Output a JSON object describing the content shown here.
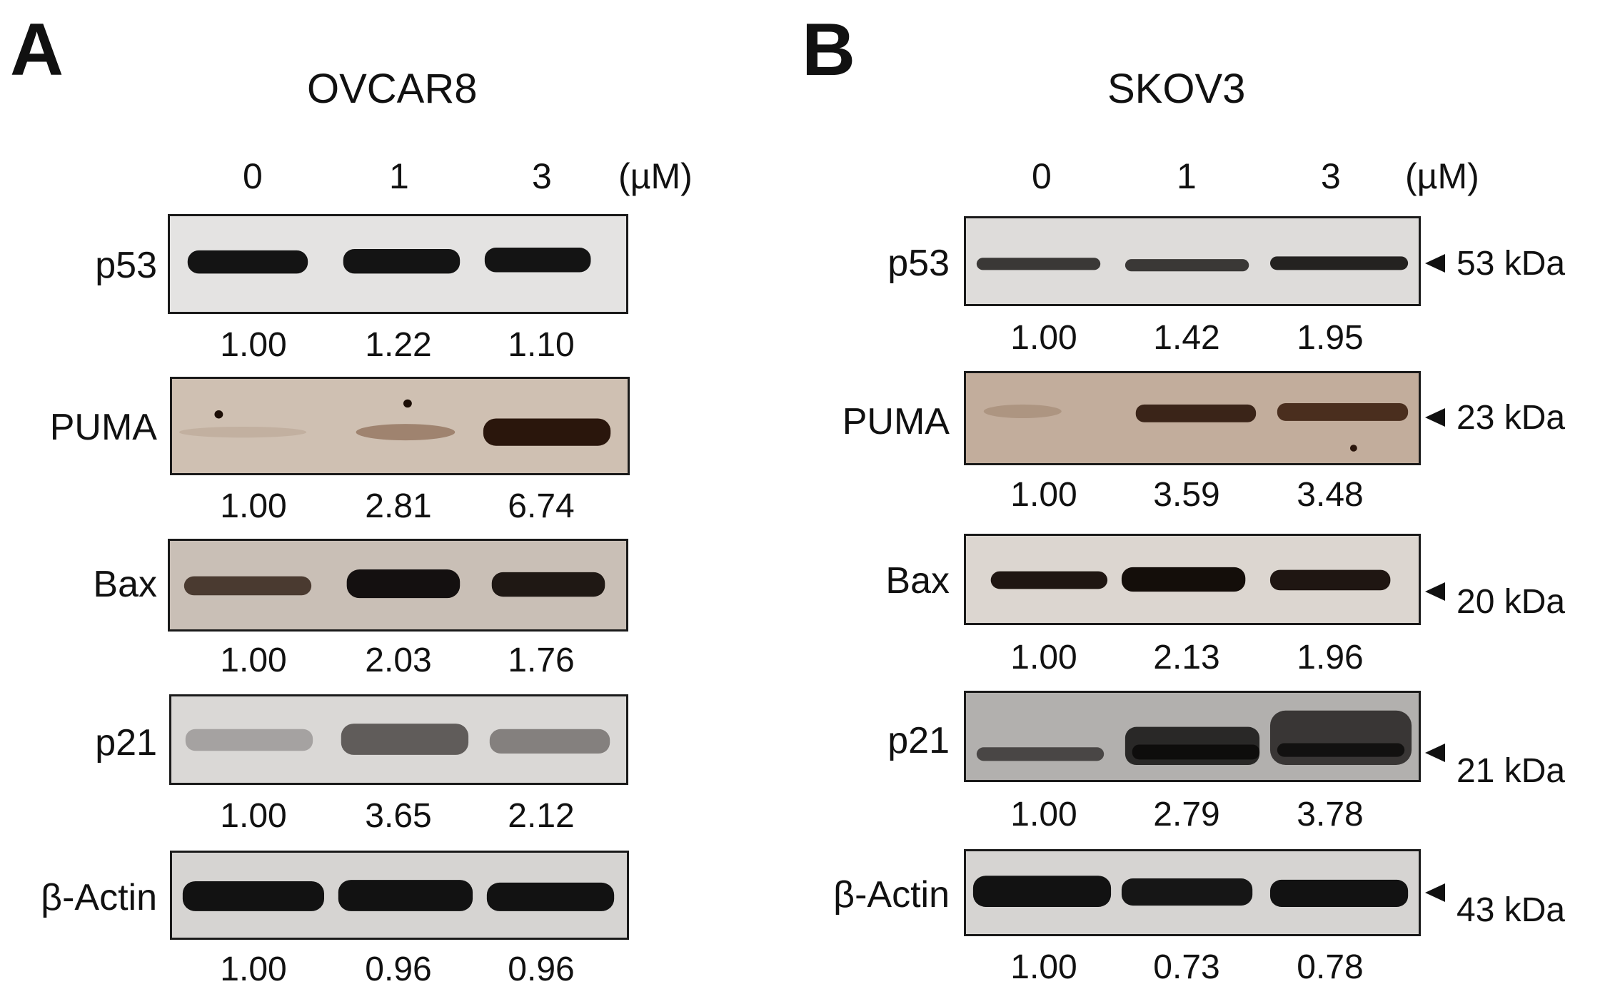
{
  "panels": {
    "a": {
      "letter": "A",
      "cell_line": "OVCAR8",
      "doses": [
        "0",
        "1",
        "3"
      ],
      "unit": "(µM)",
      "rows": [
        {
          "protein": "p53",
          "values": [
            "1.00",
            "1.22",
            "1.10"
          ]
        },
        {
          "protein": "PUMA",
          "values": [
            "1.00",
            "2.81",
            "6.74"
          ]
        },
        {
          "protein": "Bax",
          "values": [
            "1.00",
            "2.03",
            "1.76"
          ]
        },
        {
          "protein": "p21",
          "values": [
            "1.00",
            "3.65",
            "2.12"
          ]
        },
        {
          "protein": "β-Actin",
          "values": [
            "1.00",
            "0.96",
            "0.96"
          ]
        }
      ]
    },
    "b": {
      "letter": "B",
      "cell_line": "SKOV3",
      "doses": [
        "0",
        "1",
        "3"
      ],
      "unit": "(µM)",
      "rows": [
        {
          "protein": "p53",
          "values": [
            "1.00",
            "1.42",
            "1.95"
          ],
          "marker": "53 kDa"
        },
        {
          "protein": "PUMA",
          "values": [
            "1.00",
            "3.59",
            "3.48"
          ],
          "marker": "23 kDa"
        },
        {
          "protein": "Bax",
          "values": [
            "1.00",
            "2.13",
            "1.96"
          ],
          "marker": "20 kDa"
        },
        {
          "protein": "p21",
          "values": [
            "1.00",
            "2.79",
            "3.78"
          ],
          "marker": "21 kDa"
        },
        {
          "protein": "β-Actin",
          "values": [
            "1.00",
            "0.73",
            "0.78"
          ],
          "marker": "43 kDa"
        }
      ]
    }
  },
  "colors": {
    "blot_bg_light": "#e2e0de",
    "blot_bg_brown": "#c9b8a8",
    "band_dark": "#141414",
    "band_brown": "#3a2418"
  }
}
